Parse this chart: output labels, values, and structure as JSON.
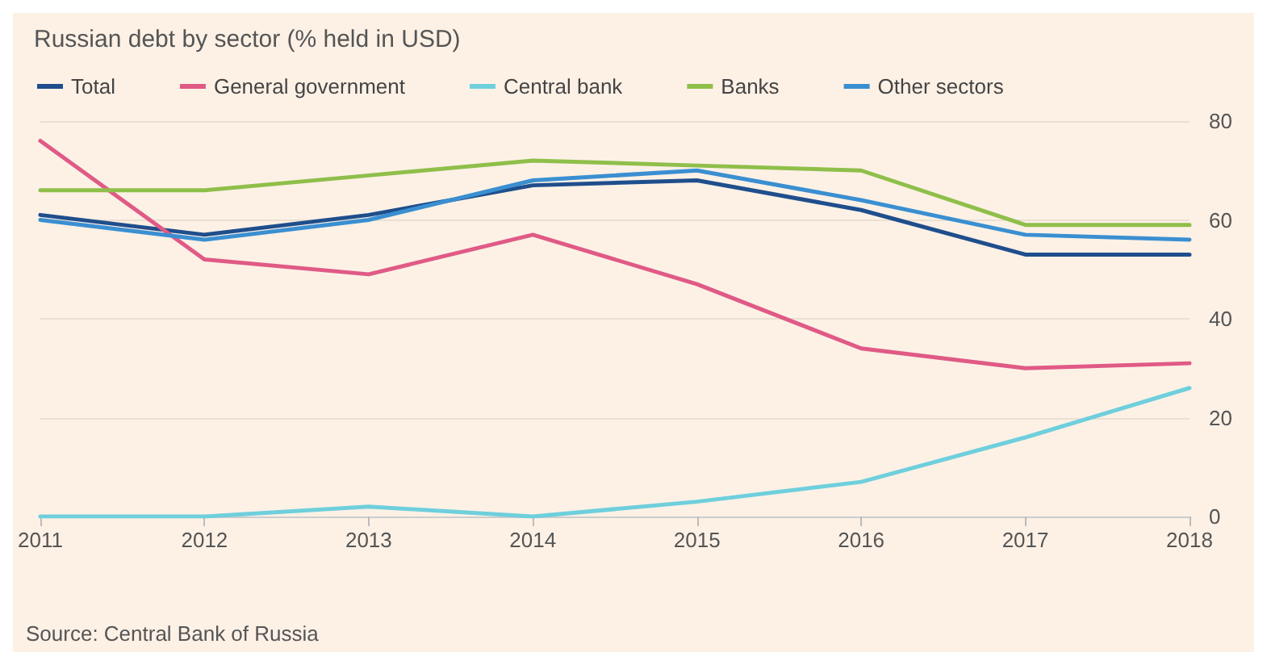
{
  "chart_data": {
    "type": "line",
    "title": "Russian debt by sector (% held in USD)",
    "x": [
      2011,
      2012,
      2013,
      2014,
      2015,
      2016,
      2017,
      2018
    ],
    "series": [
      {
        "name": "Total",
        "color": "#1f4e8c",
        "values": [
          61,
          57,
          61,
          67,
          68,
          62,
          53,
          53
        ]
      },
      {
        "name": "General government",
        "color": "#e05a86",
        "values": [
          76,
          52,
          49,
          57,
          47,
          34,
          30,
          31
        ]
      },
      {
        "name": "Central bank",
        "color": "#6fcfdc",
        "values": [
          0,
          0,
          2,
          0,
          3,
          7,
          16,
          26
        ]
      },
      {
        "name": "Banks",
        "color": "#8fbf4a",
        "values": [
          66,
          66,
          69,
          72,
          71,
          70,
          59,
          59
        ]
      },
      {
        "name": "Other sectors",
        "color": "#3a8fd1",
        "values": [
          60,
          56,
          60,
          68,
          70,
          64,
          57,
          56
        ]
      }
    ],
    "xlim": [
      2011,
      2018
    ],
    "xticks": [
      2011,
      2012,
      2013,
      2014,
      2015,
      2016,
      2017,
      2018
    ],
    "ylim": [
      0,
      80
    ],
    "yticks": [
      0,
      20,
      40,
      60,
      80
    ],
    "grid": "y",
    "legend": "top left",
    "marker": "none",
    "line_style": "solid",
    "annotations": [
      "Source: Central Bank of Russia"
    ]
  }
}
